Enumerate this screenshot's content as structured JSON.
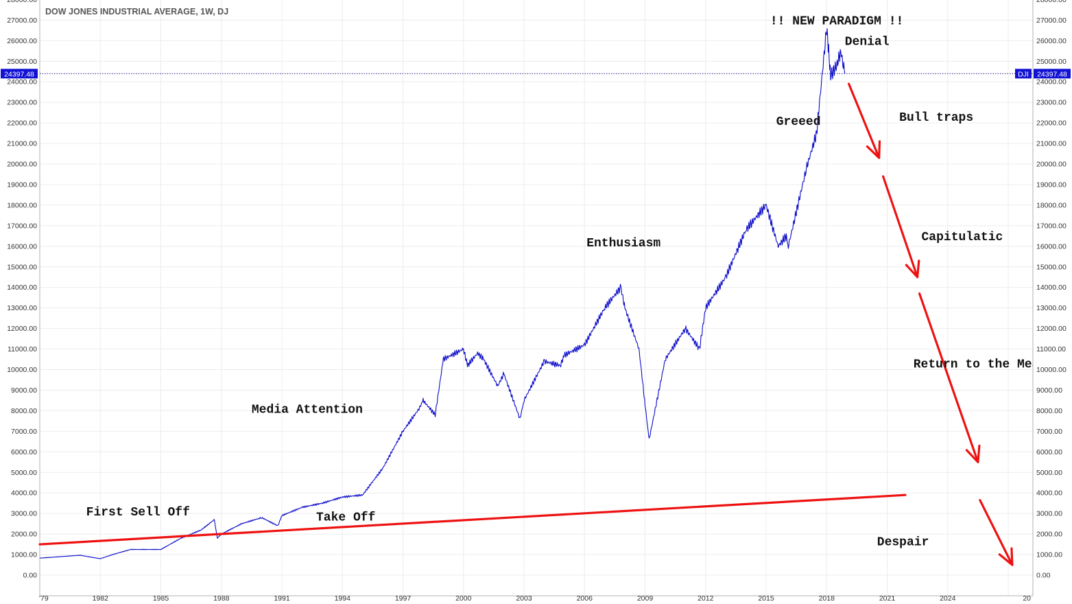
{
  "chart_data": {
    "type": "line",
    "title": "DOW JONES INDUSTRIAL AVERAGE, 1W, DJ",
    "xlabel": "",
    "ylabel": "",
    "xlim": [
      1979,
      2028
    ],
    "ylim": [
      -500,
      28000
    ],
    "x_ticks": [
      "'79",
      "1982",
      "1985",
      "1988",
      "1991",
      "1994",
      "1997",
      "2000",
      "2003",
      "2006",
      "2009",
      "2012",
      "2015",
      "2018",
      "2021",
      "2024",
      "20"
    ],
    "y_ticks": [
      "28000.00",
      "27000.00",
      "26000.00",
      "25000.00",
      "24000.00",
      "23000.00",
      "22000.00",
      "21000.00",
      "20000.00",
      "19000.00",
      "18000.00",
      "17000.00",
      "16000.00",
      "15000.00",
      "14000.00",
      "13000.00",
      "12000.00",
      "11000.00",
      "10000.00",
      "9000.00",
      "8000.00",
      "7000.00",
      "6000.00",
      "5000.00",
      "4000.00",
      "3000.00",
      "2000.00",
      "1000.00",
      "0.00"
    ],
    "grid": true,
    "series": [
      {
        "color": "#0a0ac8",
        "x": [
          1979,
          1980,
          1981,
          1982,
          1982.6,
          1983.5,
          1985,
          1986,
          1987,
          1987.65,
          1987.8,
          1988,
          1989,
          1990,
          1990.8,
          1991,
          1992,
          1993,
          1994,
          1995,
          1996,
          1997,
          1997.8,
          1998,
          1998.6,
          1999,
          2000,
          2000.2,
          2000.7,
          2001,
          2001.7,
          2002,
          2002.8,
          2003,
          2004,
          2004.8,
          2005,
          2006,
          2007,
          2007.8,
          2008,
          2008.7,
          2009,
          2009.2,
          2010,
          2011,
          2011.7,
          2012,
          2013,
          2014,
          2015,
          2015.6,
          2016,
          2016.1,
          2017,
          2017.5,
          2018,
          2018.1,
          2018.2,
          2018.5,
          2018.7,
          2018.9
        ],
        "y": [
          830,
          900,
          970,
          800,
          1000,
          1250,
          1250,
          1800,
          2200,
          2700,
          1800,
          2000,
          2500,
          2800,
          2400,
          2900,
          3300,
          3500,
          3800,
          3900,
          5200,
          7000,
          8100,
          8500,
          7800,
          10500,
          11000,
          10200,
          10800,
          10500,
          9200,
          9800,
          7600,
          8500,
          10400,
          10200,
          10700,
          11200,
          13000,
          14000,
          13000,
          11000,
          8300,
          6600,
          10500,
          12000,
          11000,
          13000,
          14500,
          16800,
          18000,
          16000,
          16500,
          16000,
          19800,
          21500,
          26600,
          25500,
          24300,
          24800,
          25500,
          24397.48
        ]
      }
    ],
    "last_value_label": "24397.48",
    "symbol_label": "DJI",
    "trendline": {
      "color": "#ee1111",
      "x": [
        1979,
        2021.9
      ],
      "y": [
        1500,
        3900
      ]
    },
    "arrows": [
      {
        "color": "#ee1111",
        "x": [
          2019.1,
          2020.6
        ],
        "y": [
          23900,
          20300
        ]
      },
      {
        "color": "#ee1111",
        "x": [
          2020.8,
          2022.5
        ],
        "y": [
          19400,
          14500
        ]
      },
      {
        "color": "#ee1111",
        "x": [
          2022.6,
          2025.5
        ],
        "y": [
          13700,
          5500
        ]
      },
      {
        "color": "#ee1111",
        "x": [
          2025.6,
          2027.2
        ],
        "y": [
          3650,
          500
        ]
      }
    ],
    "annotations": [
      {
        "text": "!! NEW PARADIGM !!",
        "x": 2015.2,
        "y": 26800
      },
      {
        "text": "Denial",
        "x": 2018.9,
        "y": 25800
      },
      {
        "text": "Bull traps",
        "x": 2021.6,
        "y": 22100
      },
      {
        "text": "Greeed",
        "x": 2015.5,
        "y": 21900
      },
      {
        "text": "Capitulatic",
        "x": 2022.7,
        "y": 16300
      },
      {
        "text": "Enthusiasm",
        "x": 2006.1,
        "y": 16000
      },
      {
        "text": "Return to the Mean",
        "x": 2022.3,
        "y": 10100
      },
      {
        "text": "Media Attention",
        "x": 1989.5,
        "y": 7900
      },
      {
        "text": "First Sell Off",
        "x": 1981.3,
        "y": 2900
      },
      {
        "text": "Take Off",
        "x": 1992.7,
        "y": 2650
      },
      {
        "text": "Despair",
        "x": 2020.5,
        "y": 1450
      }
    ]
  }
}
